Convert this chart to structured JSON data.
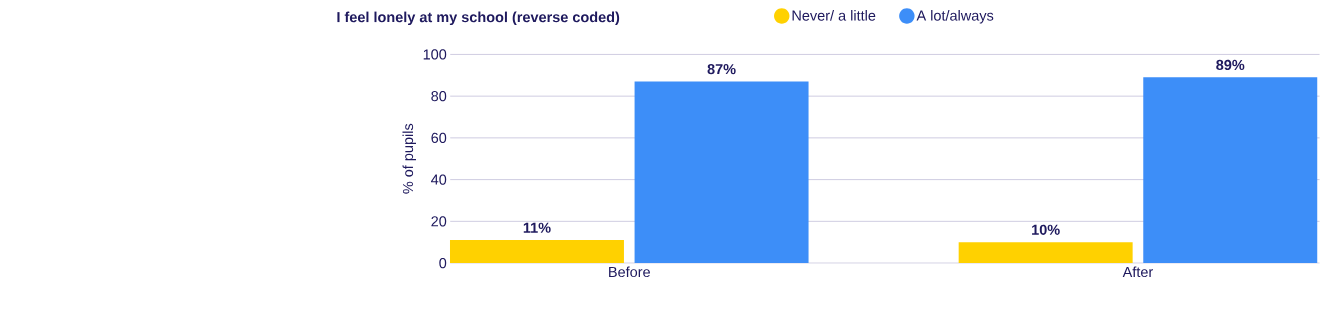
{
  "chart_data": {
    "type": "bar",
    "title": "I feel lonely at my school (reverse coded)",
    "ylabel": "% of pupils",
    "categories": [
      "Before",
      "After"
    ],
    "series": [
      {
        "name": "Never/ a little",
        "color": "#ffd100",
        "values": [
          11,
          10
        ],
        "value_labels": [
          "11%",
          "10%"
        ]
      },
      {
        "name": "A lot/always",
        "color": "#3d8ef8",
        "values": [
          87,
          89
        ],
        "value_labels": [
          "87%",
          "89%"
        ]
      }
    ],
    "ylim": [
      0,
      100
    ],
    "yticks": [
      0,
      20,
      40,
      60,
      80,
      100
    ],
    "grid": "y",
    "legend": "top"
  }
}
